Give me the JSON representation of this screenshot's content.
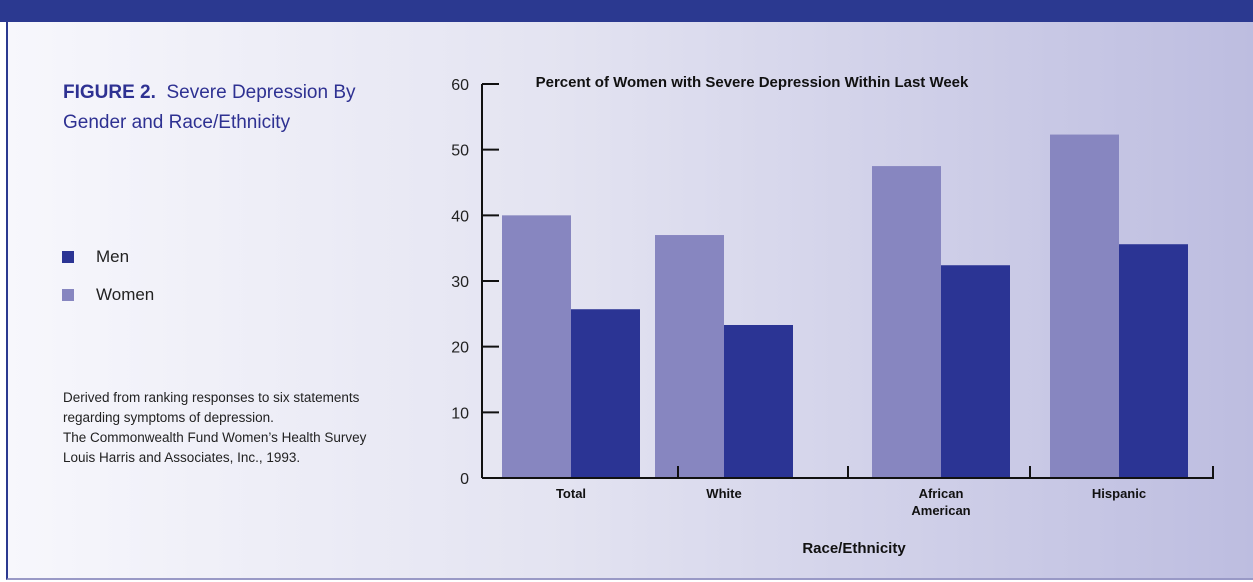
{
  "figure": {
    "label": "FIGURE 2.",
    "title": "Severe Depression By Gender and Race/Ethnicity"
  },
  "legend": {
    "items": [
      {
        "label": "Men",
        "color": "#2b3494"
      },
      {
        "label": "Women",
        "color": "#8786c0"
      }
    ]
  },
  "notes": [
    "Derived from ranking responses to six statements",
    "regarding symptoms of depression.",
    "The Commonwealth Fund Women’s Health Survey",
    "Louis Harris and Associates, Inc., 1993."
  ],
  "chart_data": {
    "type": "bar",
    "title": "Percent of Women with Severe Depression Within Last Week",
    "xlabel": "Race/Ethnicity",
    "ylabel": "",
    "ylim": [
      0,
      60
    ],
    "yticks": [
      0,
      10,
      20,
      30,
      40,
      50,
      60
    ],
    "categories": [
      "Total",
      "White",
      "African American",
      "Hispanic"
    ],
    "category_lines": [
      [
        "Total"
      ],
      [
        "White"
      ],
      [
        "African",
        "American"
      ],
      [
        "Hispanic"
      ]
    ],
    "series": [
      {
        "name": "Women",
        "color": "#8786c0",
        "values": [
          40,
          37,
          47.5,
          52.3
        ]
      },
      {
        "name": "Men",
        "color": "#2b3494",
        "values": [
          25.7,
          23.3,
          32.4,
          35.6
        ]
      }
    ],
    "grid": false
  }
}
